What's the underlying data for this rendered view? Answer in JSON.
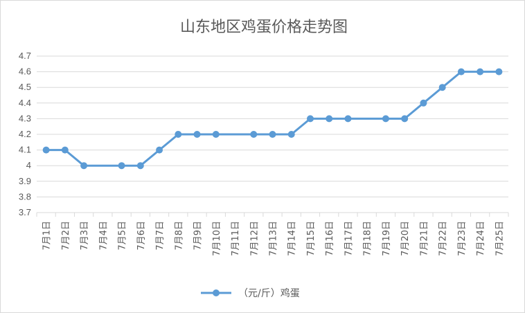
{
  "chart_data": {
    "type": "line",
    "title": "山东地区鸡蛋价格走势图",
    "xlabel": "",
    "ylabel": "",
    "categories": [
      "7月1日",
      "7月2日",
      "7月3日",
      "7月4日",
      "7月5日",
      "7月6日",
      "7月7日",
      "7月8日",
      "7月9日",
      "7月10日",
      "7月11日",
      "7月12日",
      "7月13日",
      "7月14日",
      "7月15日",
      "7月16日",
      "7月17日",
      "7月18日",
      "7月19日",
      "7月20日",
      "7月21日",
      "7月22日",
      "7月23日",
      "7月24日",
      "7月25日"
    ],
    "series": [
      {
        "name": "（元/斤）鸡蛋",
        "values": [
          4.1,
          4.1,
          4.0,
          null,
          4.0,
          4.0,
          4.1,
          4.2,
          4.2,
          4.2,
          null,
          4.2,
          4.2,
          4.2,
          4.3,
          4.3,
          4.3,
          null,
          4.3,
          4.3,
          4.4,
          4.5,
          4.6,
          4.6,
          4.6
        ]
      }
    ],
    "ylim": [
      3.7,
      4.7
    ],
    "yticks": [
      "3.7",
      "3.8",
      "3.9",
      "4",
      "4.1",
      "4.2",
      "4.3",
      "4.4",
      "4.5",
      "4.6",
      "4.7"
    ],
    "grid": true,
    "legend_position": "bottom",
    "colors": {
      "line": "#5b9bd5",
      "grid": "#d9d9d9",
      "text": "#595959"
    }
  }
}
